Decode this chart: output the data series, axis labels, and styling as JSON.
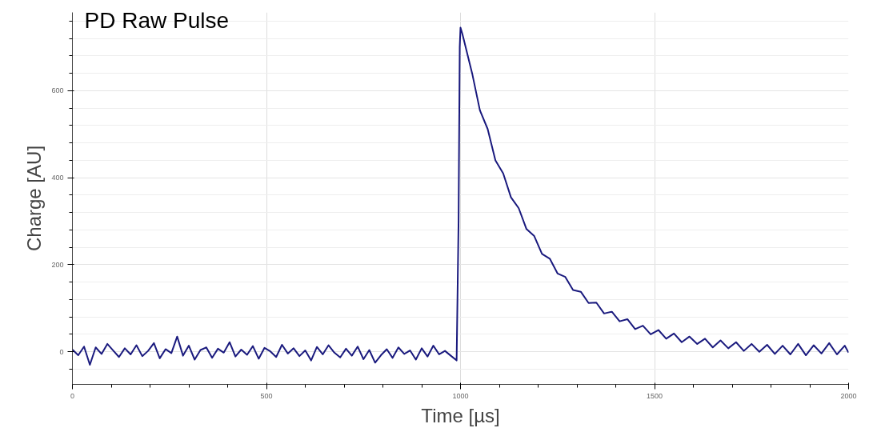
{
  "chart_data": {
    "type": "line",
    "title": "PD Raw Pulse",
    "xlabel": "Time [µs]",
    "ylabel": "Charge [AU]",
    "xlim": [
      0,
      2000
    ],
    "xticks": [
      0,
      500,
      1000,
      1500,
      2000
    ],
    "ylim": [
      -75,
      780
    ],
    "yticks": [
      0,
      200,
      400,
      600
    ],
    "grid": true,
    "marker": "none",
    "line_style": "solid",
    "series": [
      {
        "color": "#1a1a7e",
        "x": [
          0,
          15,
          30,
          45,
          60,
          75,
          90,
          105,
          120,
          135,
          150,
          165,
          180,
          195,
          210,
          225,
          240,
          255,
          270,
          285,
          300,
          315,
          330,
          345,
          360,
          375,
          390,
          405,
          420,
          435,
          450,
          465,
          480,
          495,
          510,
          525,
          540,
          555,
          570,
          585,
          600,
          615,
          630,
          645,
          660,
          675,
          690,
          705,
          720,
          735,
          750,
          765,
          780,
          795,
          810,
          825,
          840,
          855,
          870,
          885,
          900,
          915,
          930,
          945,
          960,
          975,
          990,
          995,
          998,
          1000,
          1005,
          1010,
          1030,
          1050,
          1070,
          1090,
          1110,
          1130,
          1150,
          1170,
          1190,
          1210,
          1230,
          1250,
          1270,
          1290,
          1310,
          1330,
          1350,
          1370,
          1390,
          1410,
          1430,
          1450,
          1470,
          1490,
          1510,
          1530,
          1550,
          1570,
          1590,
          1610,
          1630,
          1650,
          1670,
          1690,
          1710,
          1730,
          1750,
          1770,
          1790,
          1810,
          1830,
          1850,
          1870,
          1890,
          1910,
          1930,
          1950,
          1970,
          1990,
          2000
        ],
        "values": [
          5,
          -8,
          12,
          -30,
          10,
          -5,
          18,
          3,
          -12,
          8,
          -6,
          15,
          -10,
          2,
          20,
          -15,
          6,
          -3,
          35,
          -9,
          14,
          -18,
          4,
          10,
          -14,
          7,
          -2,
          22,
          -11,
          5,
          -7,
          13,
          -16,
          9,
          1,
          -12,
          16,
          -4,
          8,
          -10,
          3,
          -20,
          11,
          -6,
          15,
          -2,
          -13,
          7,
          -9,
          12,
          -17,
          4,
          -25,
          -8,
          6,
          -14,
          10,
          -5,
          3,
          -18,
          8,
          -11,
          14,
          -6,
          2,
          -9,
          -20,
          300,
          700,
          745,
          730,
          712,
          640,
          555,
          512,
          440,
          410,
          355,
          330,
          282,
          266,
          225,
          214,
          180,
          172,
          142,
          138,
          112,
          113,
          88,
          92,
          70,
          75,
          52,
          60,
          40,
          50,
          30,
          42,
          22,
          35,
          18,
          30,
          10,
          26,
          8,
          22,
          2,
          18,
          0,
          16,
          -5,
          14,
          -6,
          18,
          -8,
          15,
          -4,
          20,
          -6,
          14,
          -2
        ]
      }
    ]
  }
}
